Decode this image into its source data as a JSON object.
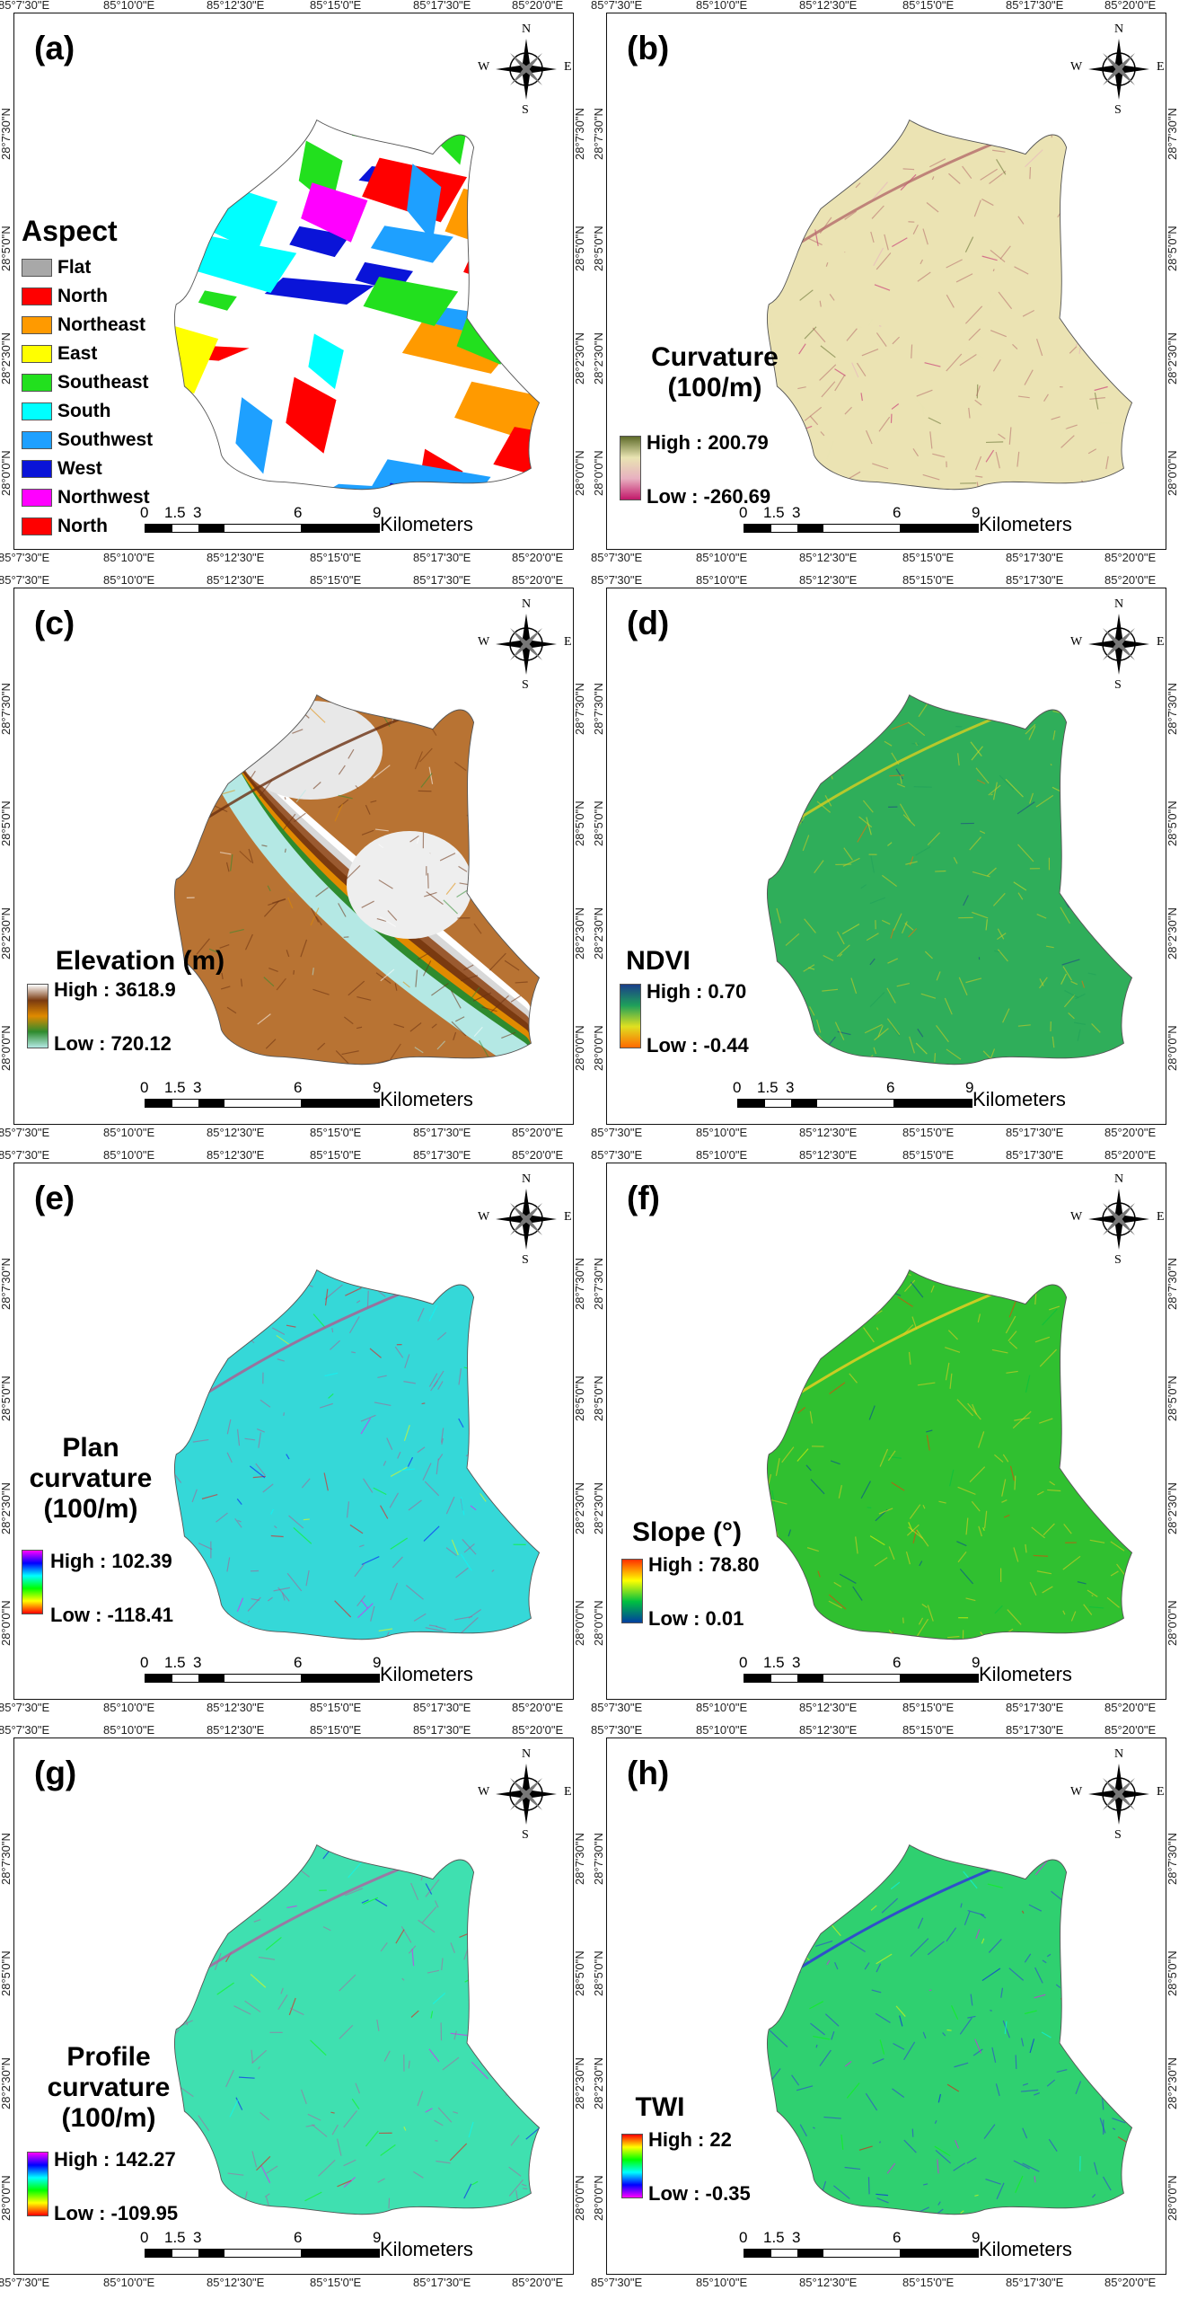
{
  "ticks_x": [
    "85°7'30\"E",
    "85°10'0\"E",
    "85°12'30\"E",
    "85°15'0\"E",
    "85°17'30\"E",
    "85°20'0\"E"
  ],
  "ticks_y": [
    "28°7'30\"N",
    "28°5'0\"N",
    "28°2'30\"N",
    "28°0'0\"N"
  ],
  "compass": {
    "n": "N",
    "s": "S",
    "e": "E",
    "w": "W"
  },
  "scalebar": {
    "labels": [
      "0",
      "1.5",
      "3",
      "6",
      "9"
    ],
    "unit": "Kilometers"
  },
  "panels": [
    {
      "id": "a",
      "label": "(a)",
      "legend_title": "Aspect",
      "classes": [
        {
          "name": "Flat",
          "color": "#a8a8a8"
        },
        {
          "name": "North",
          "color": "#ff0000"
        },
        {
          "name": "Northeast",
          "color": "#ff9a00"
        },
        {
          "name": "East",
          "color": "#ffff00"
        },
        {
          "name": "Southeast",
          "color": "#22e01e"
        },
        {
          "name": "South",
          "color": "#00ffff"
        },
        {
          "name": "Southwest",
          "color": "#1ea0ff"
        },
        {
          "name": "West",
          "color": "#0a14d8"
        },
        {
          "name": "Northwest",
          "color": "#ff00ff"
        },
        {
          "name": "North",
          "color": "#ff0000"
        }
      ]
    },
    {
      "id": "b",
      "label": "(b)",
      "legend_title": "Curvature (100/m)",
      "high": "High : 200.79",
      "low": "Low : -260.69",
      "ramp": [
        "#5e6b2a",
        "#e9e4b2",
        "#e8b0c0",
        "#c2186a"
      ],
      "base": "#ebe3b3",
      "texture": "#b46a6a"
    },
    {
      "id": "c",
      "label": "(c)",
      "legend_title": "Elevation (m)",
      "high": "High : 3618.9",
      "low": "Low : 720.12",
      "ramp": [
        "#ffffff",
        "#7a3a10",
        "#e08a00",
        "#2e8b2e",
        "#b4e8e4"
      ],
      "base": "#b87333",
      "texture": "#6a3010"
    },
    {
      "id": "d",
      "label": "(d)",
      "legend_title": "NDVI",
      "high": "High : 0.70",
      "low": "Low : -0.44",
      "ramp": [
        "#1a3f8a",
        "#1fa05a",
        "#e0e020",
        "#ff6a00"
      ],
      "base": "#2fae5a",
      "texture": "#d8d020"
    },
    {
      "id": "e",
      "label": "(e)",
      "legend_title": "Plan curvature (100/m)",
      "high": "High : 102.39",
      "low": "Low : -118.41",
      "ramp": [
        "#ff00ff",
        "#0000ff",
        "#00ffff",
        "#00ff00",
        "#ffff00",
        "#ff0000"
      ],
      "base": "#35d8d8",
      "texture": "#b05a90"
    },
    {
      "id": "f",
      "label": "(f)",
      "legend_title": "Slope (°)",
      "high": "High : 78.80",
      "low": "Low : 0.01",
      "ramp": [
        "#ff3000",
        "#ffff00",
        "#00c040",
        "#003fa0"
      ],
      "base": "#30c030",
      "texture": "#f0d020"
    },
    {
      "id": "g",
      "label": "(g)",
      "legend_title": "Profile curvature (100/m)",
      "high": "High : 142.27",
      "low": "Low : -109.95",
      "ramp": [
        "#ff00ff",
        "#0000ff",
        "#00ffff",
        "#00ff00",
        "#ffff00",
        "#ff0000"
      ],
      "base": "#3fe0b0",
      "texture": "#b060a0"
    },
    {
      "id": "h",
      "label": "(h)",
      "legend_title": "TWI",
      "high": "High : 22",
      "low": "Low : -0.35",
      "ramp": [
        "#ff0000",
        "#ffff00",
        "#00ff00",
        "#00ffff",
        "#0000ff",
        "#ff00ff"
      ],
      "base": "#2fd070",
      "texture": "#3030e0"
    }
  ]
}
